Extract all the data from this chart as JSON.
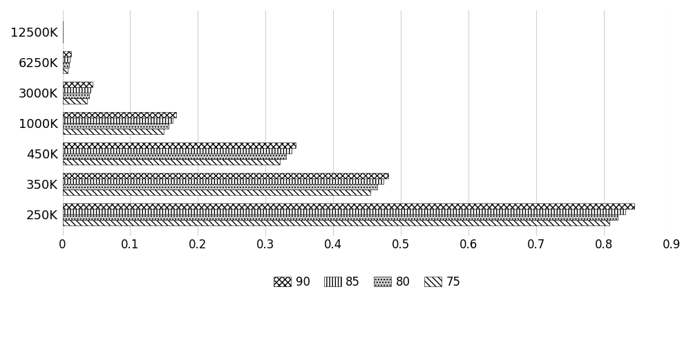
{
  "categories": [
    "250K",
    "350K",
    "450K",
    "1000K",
    "3000K",
    "6250K",
    "12500K"
  ],
  "series": {
    "90": [
      0.845,
      0.481,
      0.345,
      0.168,
      0.044,
      0.013,
      0.0
    ],
    "85": [
      0.832,
      0.474,
      0.338,
      0.163,
      0.041,
      0.011,
      0.0
    ],
    "80": [
      0.82,
      0.465,
      0.33,
      0.157,
      0.039,
      0.01,
      0.0
    ],
    "75": [
      0.808,
      0.455,
      0.321,
      0.15,
      0.036,
      0.008,
      0.0
    ]
  },
  "series_order": [
    "90",
    "85",
    "80",
    "75"
  ],
  "series_labels": [
    "90",
    "85",
    "80",
    "75"
  ],
  "xlim": [
    0,
    0.9
  ],
  "xticks": [
    0.0,
    0.1,
    0.2,
    0.3,
    0.4,
    0.5,
    0.6,
    0.7,
    0.8,
    0.9
  ],
  "bar_height": 0.65,
  "sub_bar_height": 0.18
}
